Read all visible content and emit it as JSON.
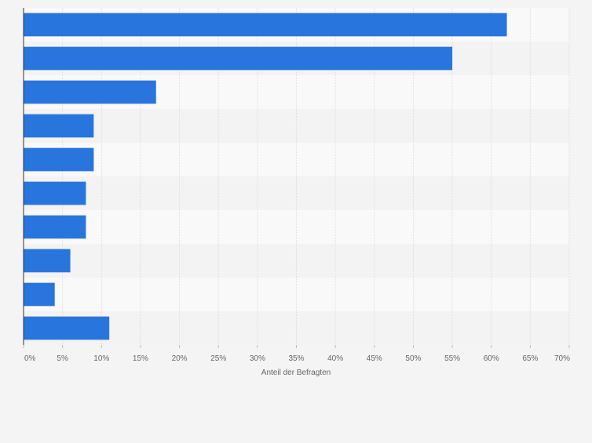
{
  "chart_data": {
    "type": "bar",
    "orientation": "horizontal",
    "categories": [
      "",
      "",
      "",
      "",
      "",
      "",
      "",
      "",
      "",
      ""
    ],
    "values": [
      62,
      55,
      17,
      9,
      9,
      8,
      8,
      6,
      4,
      11
    ],
    "xlabel": "Anteil der Befragten",
    "ylabel": "",
    "xlim": [
      0,
      70
    ],
    "xticks": [
      0,
      5,
      10,
      15,
      20,
      25,
      30,
      35,
      40,
      45,
      50,
      55,
      60,
      65,
      70
    ],
    "xtick_labels": [
      "0%",
      "5%",
      "10%",
      "15%",
      "20%",
      "25%",
      "30%",
      "35%",
      "40%",
      "45%",
      "50%",
      "55%",
      "60%",
      "65%",
      "70%"
    ],
    "grid": true,
    "colors": {
      "bar": "#2876dd",
      "band_light": "#f9f9f9",
      "band_dark": "#f3f3f3",
      "grid": "#dedede",
      "axis": "#333333",
      "tick_text": "#666666",
      "background": "#f4f4f4"
    }
  }
}
